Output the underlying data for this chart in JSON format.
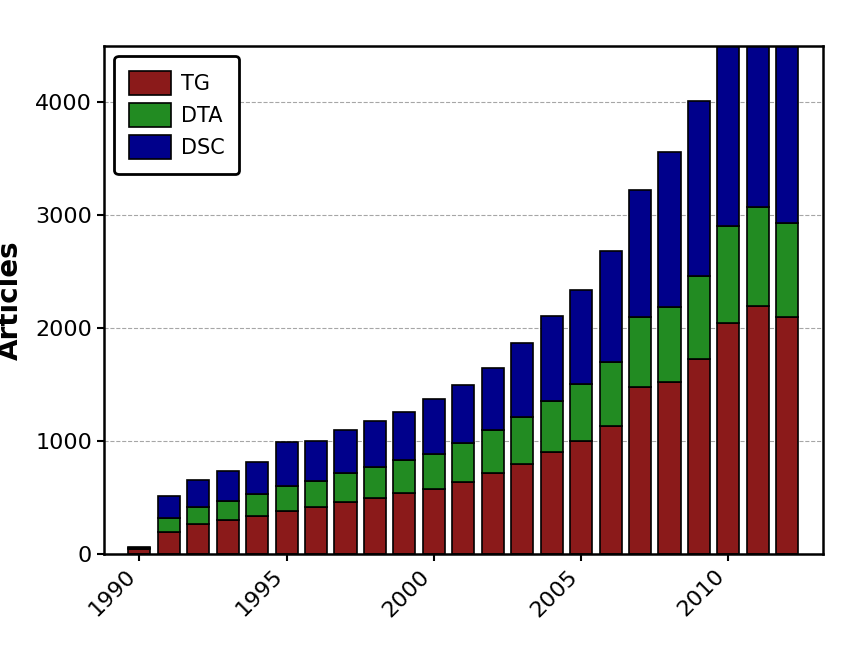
{
  "years": [
    1990,
    1991,
    1992,
    1993,
    1994,
    1995,
    1996,
    1997,
    1998,
    1999,
    2000,
    2001,
    2002,
    2003,
    2004,
    2005,
    2006,
    2007,
    2008,
    2009,
    2010,
    2011,
    2012
  ],
  "TG": [
    50,
    200,
    270,
    300,
    340,
    380,
    420,
    460,
    500,
    540,
    580,
    640,
    720,
    800,
    900,
    1000,
    1130,
    1480,
    1520,
    1730,
    2050,
    2200,
    2100
  ],
  "DTA": [
    5,
    120,
    150,
    170,
    190,
    220,
    230,
    260,
    270,
    290,
    310,
    345,
    375,
    410,
    460,
    510,
    570,
    620,
    670,
    730,
    850,
    870,
    830
  ],
  "DSC": [
    10,
    195,
    240,
    265,
    290,
    390,
    355,
    375,
    410,
    430,
    480,
    510,
    555,
    660,
    750,
    830,
    980,
    1120,
    1370,
    1550,
    1640,
    1800,
    1770
  ],
  "colors": {
    "TG": "#8B1A1A",
    "DTA": "#228B22",
    "DSC": "#00008B"
  },
  "ylabel": "Articles",
  "ylim": [
    0,
    4500
  ],
  "yticks": [
    0,
    1000,
    2000,
    3000,
    4000
  ],
  "xticks": [
    1990,
    1995,
    2000,
    2005,
    2010
  ],
  "background_color": "#ffffff",
  "legend_labels": [
    "TG",
    "DTA",
    "DSC"
  ],
  "bar_width": 0.75,
  "edge_color": "#000000",
  "edge_linewidth": 1.2
}
